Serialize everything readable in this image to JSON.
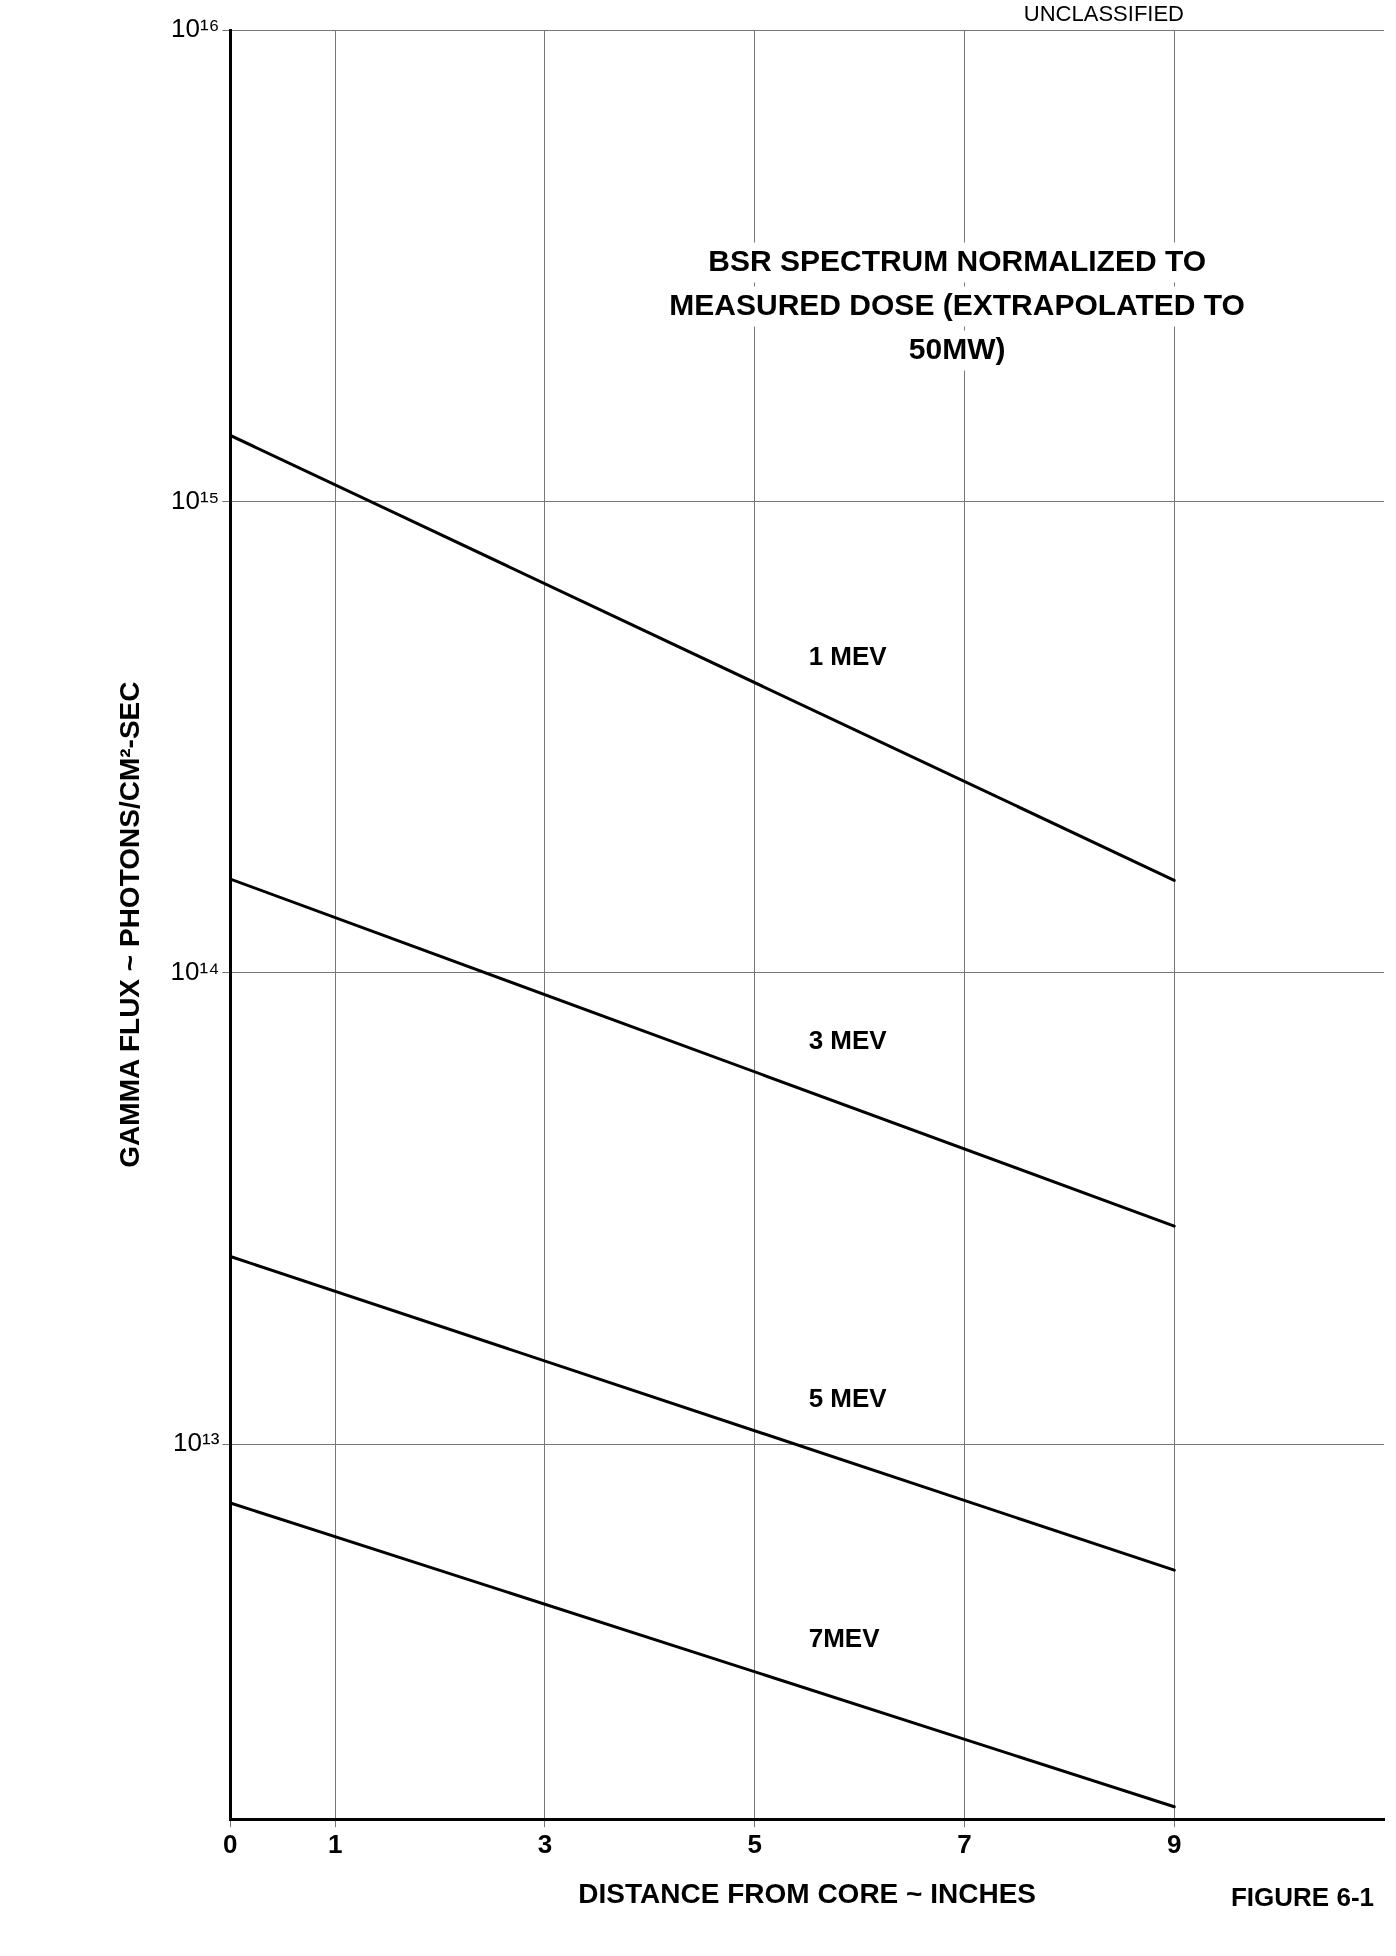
{
  "chart_data": {
    "type": "line",
    "title": "BSR SPECTRUM NORMALIZED TO MEASURED DOSE (EXTRAPOLATED TO 50MW)",
    "xlabel": "DISTANCE FROM CORE ~ INCHES",
    "ylabel": "GAMMA FLUX ~ PHOTONS/CM²-SEC",
    "x": [
      0,
      9
    ],
    "series": [
      {
        "name": "1 MEV",
        "color": "#000000",
        "values": [
          1380000000000000.0,
          157000000000000.0
        ]
      },
      {
        "name": "3 MEV",
        "color": "#000000",
        "values": [
          158000000000000.0,
          29000000000000.0
        ]
      },
      {
        "name": "5 MEV",
        "color": "#000000",
        "values": [
          25000000000000.0,
          5400000000000.0
        ]
      },
      {
        "name": "7MEV",
        "color": "#000000",
        "values": [
          7500000000000.0,
          1700000000000.0
        ]
      }
    ],
    "log": true,
    "xlim": [
      0,
      11
    ],
    "xticks": [
      0,
      1,
      3,
      5,
      7,
      9
    ],
    "ylim": [
      1600000000000.0,
      1e+16
    ],
    "yticks": [
      {
        "value": 10000000000000.0,
        "label": "10¹³"
      },
      {
        "value": 100000000000000.0,
        "label": "10¹⁴"
      },
      {
        "value": 1000000000000000.0,
        "label": "10¹⁵"
      },
      {
        "value": 1e+16,
        "label": "10¹⁶"
      }
    ],
    "grid": true,
    "legend": false,
    "marker": "none",
    "line_style": "solid",
    "annotations": [
      "UNCLASSIFIED",
      "FIGURE 6-1"
    ]
  }
}
